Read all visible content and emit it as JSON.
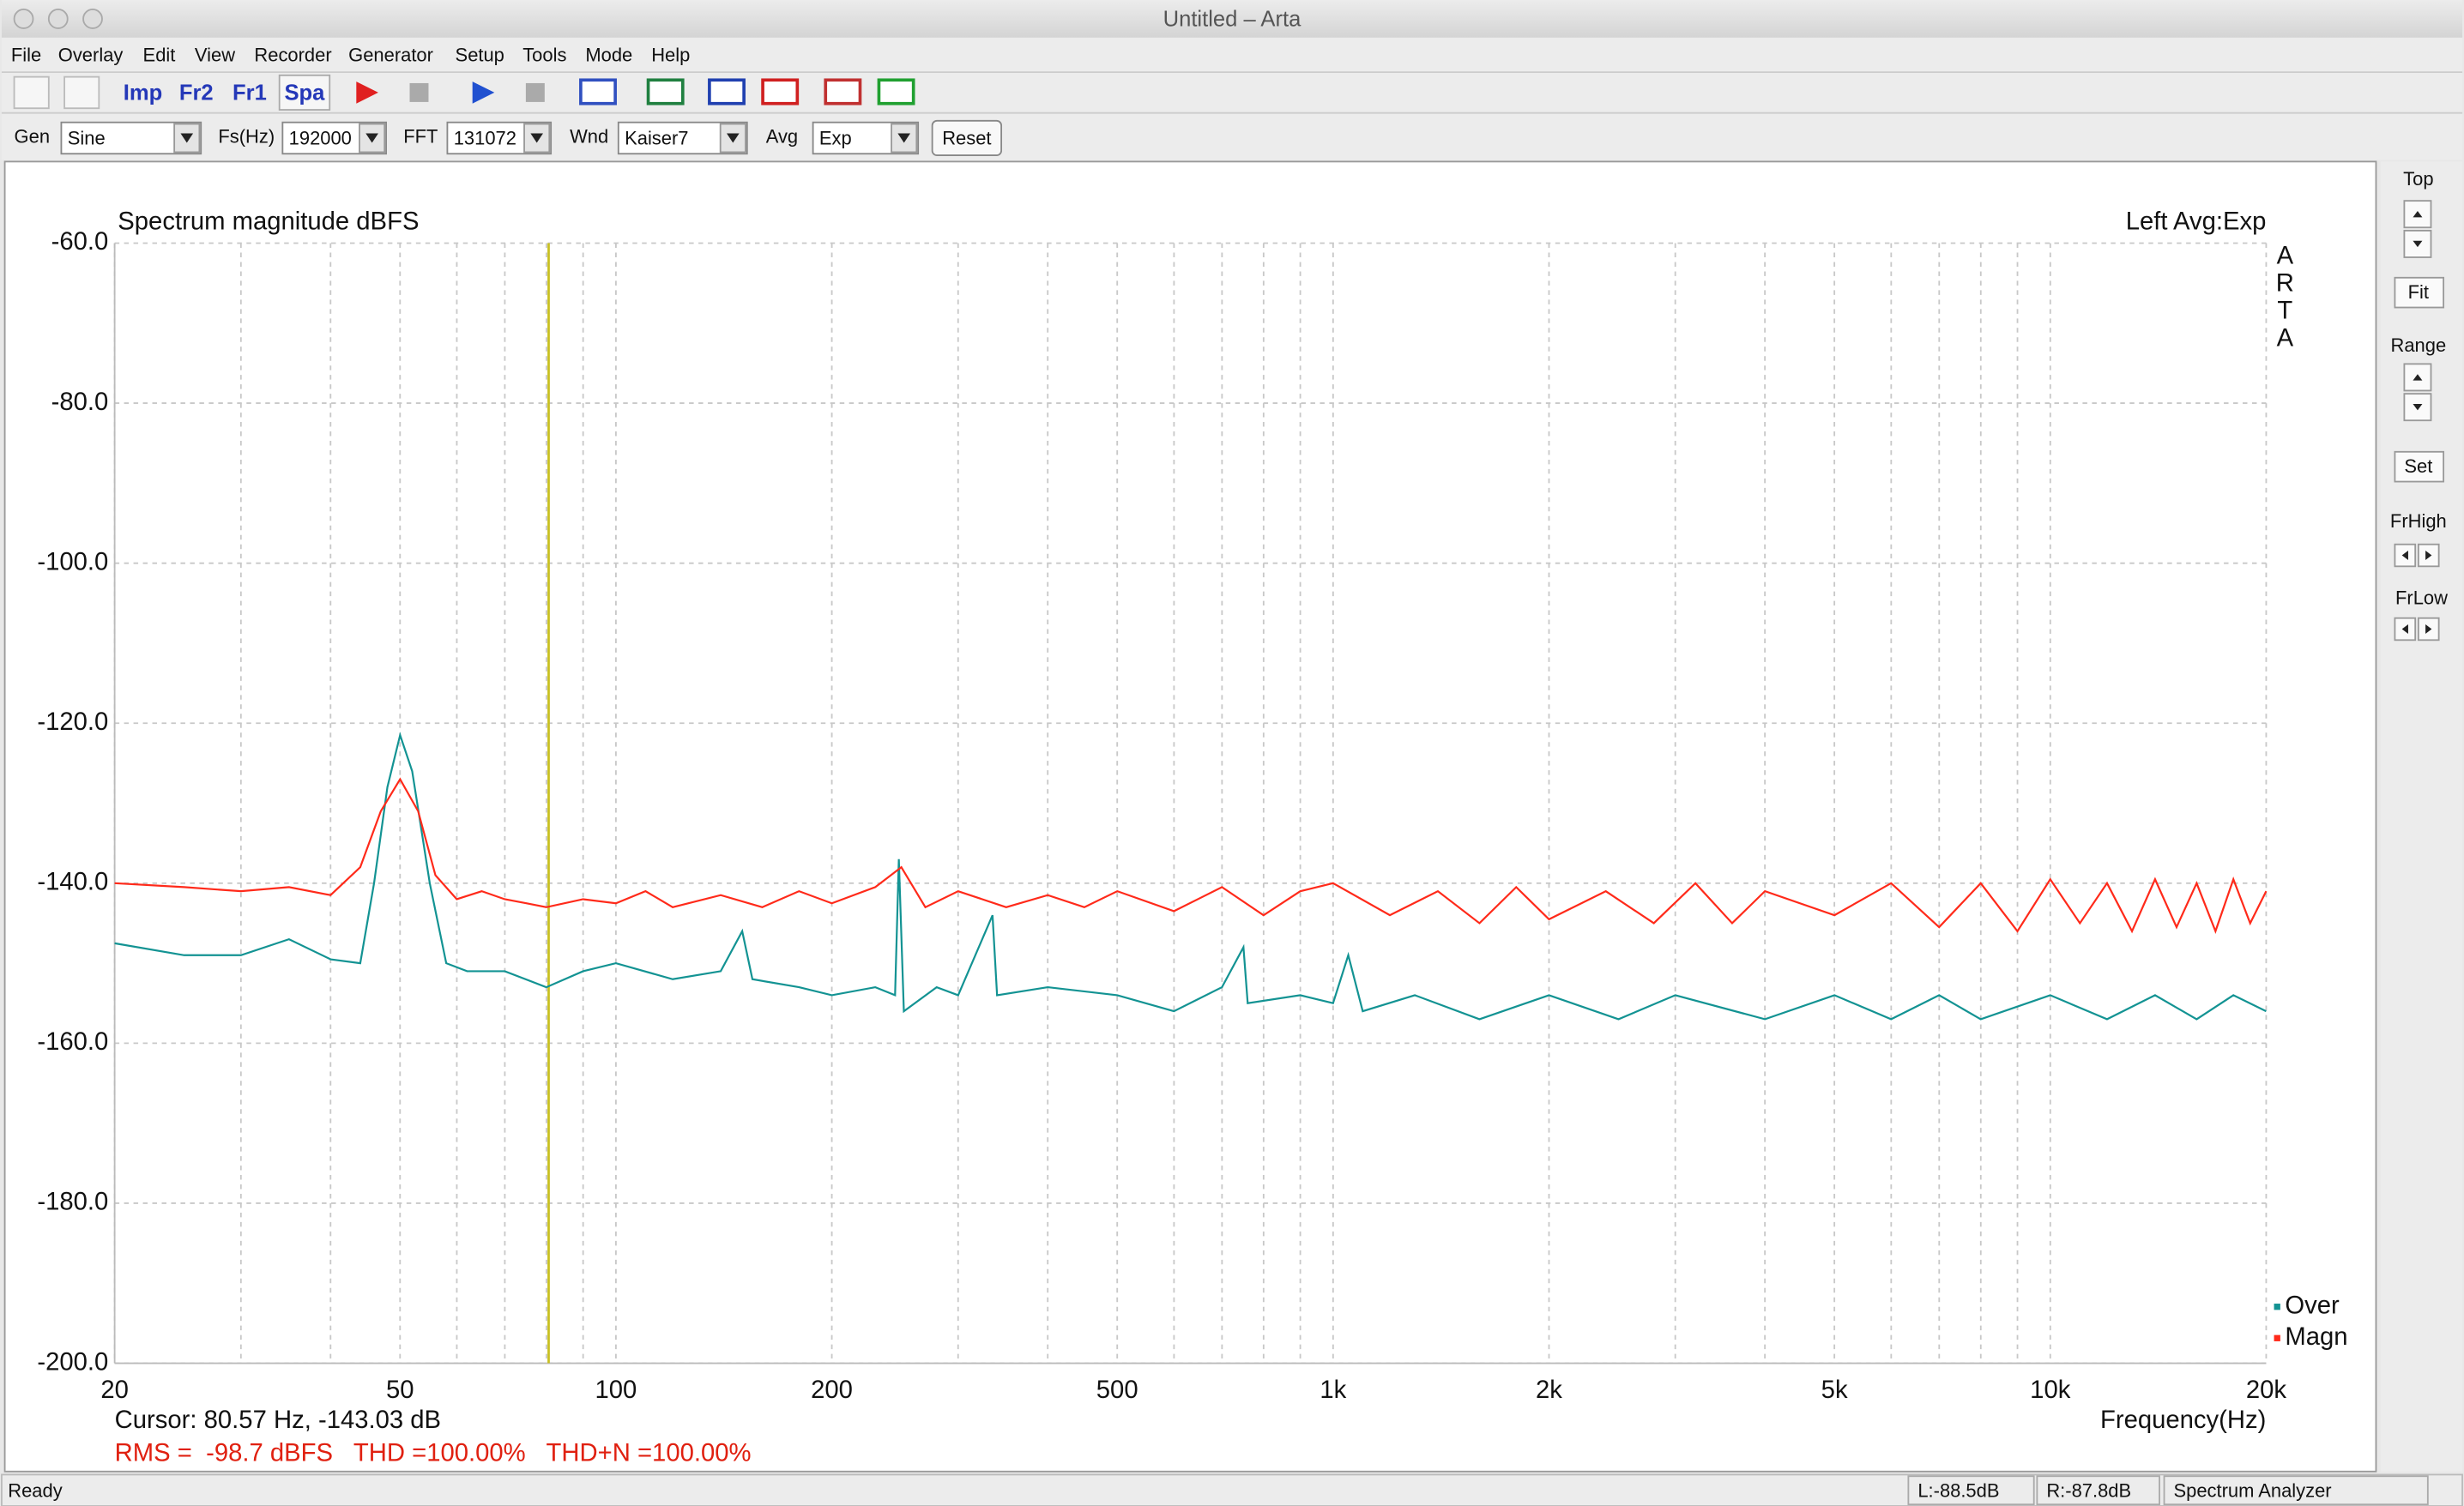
{
  "window": {
    "title": "Untitled – Arta"
  },
  "menu": [
    "File",
    "Overlay",
    "Edit",
    "View",
    "Recorder",
    "Generator",
    "Setup",
    "Tools",
    "Mode",
    "Help"
  ],
  "toolbar": [
    "Imp",
    "Fr2",
    "Fr1",
    "Spa"
  ],
  "controls": [
    {
      "label": "Gen",
      "value": "Sine"
    },
    {
      "label": "Fs(Hz)",
      "value": "192000"
    },
    {
      "label": "FFT",
      "value": "131072"
    },
    {
      "label": "Wnd",
      "value": "Kaiser7"
    },
    {
      "label": "Avg",
      "value": "Exp"
    }
  ],
  "reset": "Reset",
  "side_panel": {
    "top": "Top",
    "fit": "Fit",
    "range": "Range",
    "set": "Set",
    "frhigh": "FrHigh",
    "frlow": "FrLow"
  },
  "status": [
    "Ready",
    "L:-88.5dB",
    "R:-87.8dB",
    "Spectrum Analyzer"
  ],
  "chart_data": {
    "type": "line",
    "title": "Spectrum magnitude dBFS",
    "channel_label": "Left  Avg:Exp",
    "side_logo": [
      "A",
      "R",
      "T",
      "A"
    ],
    "x_label": "Frequency(Hz)",
    "cursor_text": "Cursor: 80.57 Hz, -143.03 dB",
    "cursor_x": 80.57,
    "cursor_color": "#c8c020",
    "summary": "RMS =  -98.7 dBFS   THD =100.00%   THD+N =100.00%",
    "x_log": true,
    "grid": true,
    "legend": "bottom-right",
    "xlim": [
      20,
      20000
    ],
    "ylim": [
      -200,
      -60
    ],
    "xticks": [
      20,
      50,
      100,
      200,
      500,
      {
        "value": 1000,
        "label": "1k"
      },
      {
        "value": 2000,
        "label": "2k"
      },
      {
        "value": 5000,
        "label": "5k"
      },
      {
        "value": 10000,
        "label": "10k"
      },
      {
        "value": 20000,
        "label": "20k"
      }
    ],
    "x_minor_ticks": [
      30,
      40,
      60,
      70,
      80,
      90,
      300,
      400,
      600,
      700,
      800,
      900,
      3000,
      4000,
      6000,
      7000,
      8000,
      9000
    ],
    "yticks": [
      {
        "value": -200,
        "label": "-200.0"
      },
      {
        "value": -180,
        "label": "-180.0"
      },
      {
        "value": -160,
        "label": "-160.0"
      },
      {
        "value": -140,
        "label": "-140.0"
      },
      {
        "value": -120,
        "label": "-120.0"
      },
      {
        "value": -100,
        "label": "-100.0"
      },
      {
        "value": -80,
        "label": "-80.0"
      },
      {
        "value": -60,
        "label": "-60.0"
      }
    ],
    "series": [
      {
        "name": "Over",
        "color": "#139393",
        "x": [
          20,
          25,
          30,
          35,
          40,
          44,
          46,
          48,
          50,
          52,
          55,
          58,
          62,
          70,
          80,
          90,
          100,
          120,
          140,
          150,
          155,
          180,
          200,
          230,
          245,
          248,
          252,
          280,
          300,
          335,
          340,
          400,
          500,
          600,
          700,
          750,
          760,
          900,
          1000,
          1050,
          1100,
          1300,
          1600,
          2000,
          2500,
          3000,
          4000,
          5000,
          6000,
          7000,
          8000,
          10000,
          12000,
          14000,
          16000,
          18000,
          20000
        ],
        "values": [
          -147.5,
          -149,
          -149,
          -147,
          -149.5,
          -150,
          -140,
          -128,
          -121.5,
          -126,
          -140,
          -150,
          -151,
          -151,
          -153,
          -151,
          -150,
          -152,
          -151,
          -146,
          -152,
          -153,
          -154,
          -153,
          -154,
          -137,
          -156,
          -153,
          -154,
          -144,
          -154,
          -153,
          -154,
          -156,
          -153,
          -148,
          -155,
          -154,
          -155,
          -149,
          -156,
          -154,
          -157,
          -154,
          -157,
          -154,
          -157,
          -154,
          -157,
          -154,
          -157,
          -154,
          -157,
          -154,
          -157,
          -154,
          -156
        ]
      },
      {
        "name": "Magn",
        "color": "#ff2a1a",
        "x": [
          20,
          25,
          30,
          35,
          40,
          44,
          47,
          50,
          53,
          56,
          60,
          65,
          70,
          75,
          80,
          90,
          100,
          110,
          120,
          140,
          160,
          180,
          200,
          230,
          250,
          270,
          300,
          350,
          400,
          450,
          500,
          600,
          700,
          800,
          900,
          1000,
          1200,
          1400,
          1600,
          1800,
          2000,
          2400,
          2800,
          3200,
          3600,
          4000,
          5000,
          6000,
          7000,
          8000,
          9000,
          10000,
          11000,
          12000,
          13000,
          14000,
          15000,
          16000,
          17000,
          18000,
          19000,
          20000
        ],
        "values": [
          -140,
          -140.5,
          -141,
          -140.5,
          -141.5,
          -138,
          -131,
          -127,
          -131,
          -139,
          -142,
          -141,
          -142,
          -142.5,
          -143,
          -142,
          -142.5,
          -141,
          -143,
          -141.5,
          -143,
          -141,
          -142.5,
          -140.5,
          -138,
          -143,
          -141,
          -143,
          -141.5,
          -143,
          -141,
          -143.5,
          -140.5,
          -144,
          -141,
          -140,
          -144,
          -141,
          -145,
          -140.5,
          -144.5,
          -141,
          -145,
          -140,
          -145,
          -141,
          -144,
          -140,
          -145.5,
          -140,
          -146,
          -139.5,
          -145,
          -140,
          -146,
          -139.5,
          -145.5,
          -140,
          -146,
          -139.5,
          -145,
          -141
        ]
      }
    ]
  }
}
